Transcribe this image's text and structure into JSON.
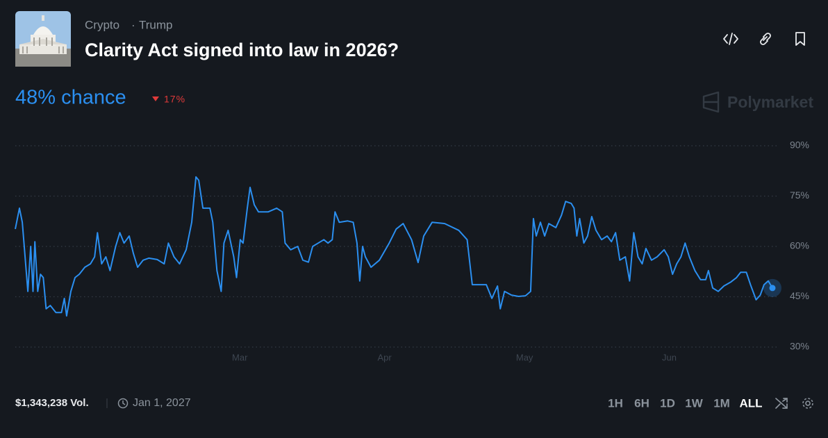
{
  "header": {
    "categories": [
      "Crypto",
      "Trump"
    ],
    "title": "Clarity Act signed into law in 2026?",
    "chance": "48% chance",
    "change": "17%",
    "brand": "Polymarket"
  },
  "footer": {
    "volume": "$1,343,238 Vol.",
    "end_date": "Jan 1, 2027",
    "ranges": [
      "1H",
      "6H",
      "1D",
      "1W",
      "1M",
      "ALL"
    ]
  },
  "chart_data": {
    "type": "line",
    "color": "#2b8ff0",
    "grid": true,
    "xlim": [
      11.9,
      174.1
    ],
    "ylim": [
      30,
      90
    ],
    "xticks": [
      {
        "value": 60,
        "label": "Mar"
      },
      {
        "value": 91,
        "label": "Apr"
      },
      {
        "value": 121,
        "label": "May"
      },
      {
        "value": 152,
        "label": "Jun"
      }
    ],
    "yticks": [
      {
        "value": 30,
        "label": "30%"
      },
      {
        "value": 45,
        "label": "45%"
      },
      {
        "value": 60,
        "label": "60%"
      },
      {
        "value": 75,
        "label": "75%"
      },
      {
        "value": 90,
        "label": "90%"
      }
    ],
    "x": [
      11.9,
      12.8,
      13.4,
      14.0,
      14.6,
      15.2,
      15.7,
      16.1,
      16.7,
      17.3,
      17.9,
      18.5,
      19.4,
      20.6,
      21.8,
      22.4,
      22.9,
      23.8,
      24.7,
      25.6,
      26.8,
      28.0,
      28.9,
      29.5,
      30.4,
      31.3,
      32.2,
      33.4,
      34.3,
      35.2,
      36.3,
      37.2,
      38.1,
      39.3,
      40.5,
      42.3,
      43.8,
      44.7,
      45.9,
      47.1,
      48.5,
      49.7,
      50.6,
      51.2,
      52.1,
      53.6,
      54.2,
      55.1,
      56.0,
      56.6,
      57.5,
      58.7,
      59.3,
      60.1,
      60.7,
      61.6,
      62.2,
      63.1,
      64.0,
      66.1,
      67.9,
      69.1,
      69.7,
      70.9,
      72.4,
      73.5,
      74.7,
      75.6,
      76.8,
      78.0,
      78.9,
      79.8,
      80.4,
      81.3,
      83.1,
      84.3,
      85.1,
      85.7,
      86.3,
      86.9,
      88.1,
      89.9,
      92.0,
      93.5,
      95.0,
      96.8,
      98.2,
      99.4,
      101.2,
      103.9,
      106.9,
      108.7,
      109.8,
      112.8,
      114.0,
      115.2,
      115.8,
      116.7,
      118.2,
      119.7,
      121.2,
      122.3,
      122.9,
      123.5,
      124.4,
      125.3,
      126.2,
      127.7,
      128.9,
      129.8,
      131.0,
      131.6,
      132.2,
      132.8,
      133.7,
      134.5,
      135.4,
      136.3,
      137.5,
      138.7,
      139.6,
      140.5,
      141.4,
      142.6,
      143.5,
      144.4,
      145.3,
      146.2,
      147.0,
      148.2,
      149.4,
      150.9,
      151.8,
      152.7,
      153.6,
      154.5,
      155.4,
      156.3,
      157.5,
      158.7,
      159.8,
      160.4,
      161.3,
      162.5,
      163.7,
      165.2,
      166.4,
      167.3,
      168.5,
      169.4,
      170.6,
      171.5,
      172.3,
      173.2,
      174.1
    ],
    "values": [
      65.2,
      71.4,
      67.2,
      56.9,
      46.6,
      60,
      46.6,
      61.4,
      46.6,
      51.7,
      50.7,
      41.4,
      42.4,
      40.3,
      40.3,
      44.5,
      39.3,
      46.6,
      50.7,
      51.7,
      53.8,
      54.8,
      56.9,
      64.1,
      54.8,
      56.9,
      52.8,
      60,
      64.1,
      61,
      63.1,
      57.9,
      53.8,
      55.9,
      56.5,
      56.1,
      54.8,
      61,
      56.9,
      54.8,
      59,
      67.2,
      80.7,
      79.7,
      71.4,
      71.4,
      67.2,
      52.8,
      46.6,
      61,
      64.8,
      56.9,
      50.7,
      62,
      61,
      71.4,
      77.6,
      72.4,
      70.3,
      70.3,
      71.4,
      70.3,
      61,
      59,
      60,
      55.9,
      55.3,
      60,
      61,
      62,
      61,
      62,
      70.3,
      67.2,
      67.6,
      67.2,
      61,
      49.7,
      60,
      56.9,
      53.8,
      55.9,
      61,
      65.2,
      66.8,
      62,
      55.2,
      63.1,
      67.2,
      66.8,
      64.8,
      62,
      48.6,
      48.6,
      44.5,
      48.2,
      41.4,
      46.6,
      45.5,
      45.1,
      45.3,
      46.6,
      68.3,
      63.1,
      67.2,
      63.1,
      66.8,
      65.6,
      69.3,
      73.4,
      72.8,
      71.4,
      63.1,
      68.3,
      61,
      63.1,
      68.9,
      64.8,
      62,
      63.1,
      61.4,
      64.1,
      55.9,
      56.9,
      49.7,
      64.1,
      56.9,
      54.8,
      59.4,
      55.9,
      56.9,
      59,
      56.9,
      51.7,
      54.8,
      56.9,
      61,
      56.9,
      52.8,
      50.1,
      50.1,
      52.8,
      47.6,
      46.6,
      48.2,
      49.4,
      50.7,
      52.3,
      52.3,
      48.6,
      44.1,
      45.5,
      48.6,
      49.7,
      47.6
    ]
  }
}
